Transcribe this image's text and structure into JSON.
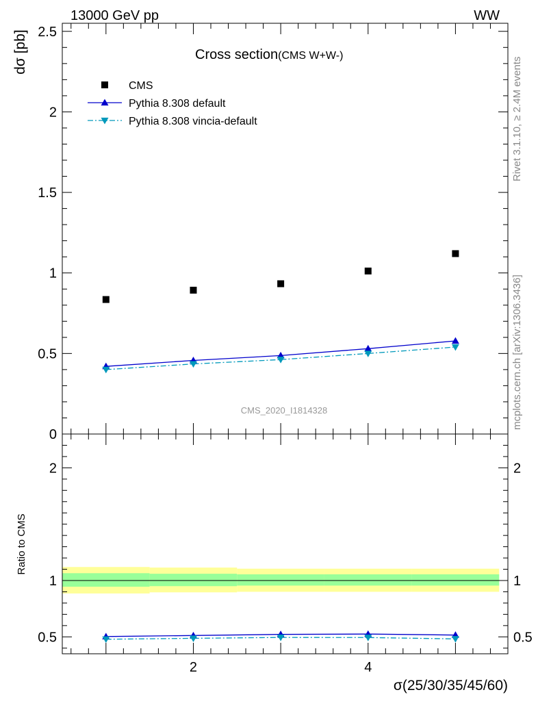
{
  "header": {
    "left": "13000 GeV pp",
    "right": "WW"
  },
  "side_text": {
    "rivet": "Rivet 3.1.10, ≥ 2.4M events",
    "mcplots": "mcplots.cern.ch [arXiv:1306.3436]"
  },
  "chart_data": [
    {
      "type": "scatter",
      "title": "Cross section",
      "subtitle": "(CMS W+W-)",
      "ylabel": "dσ [pb]",
      "xlabel": "",
      "watermark": "CMS_2020_I1814328",
      "xlim": [
        0.5,
        5.6
      ],
      "ylim": [
        0,
        2.55
      ],
      "yticks": [
        {
          "v": 0,
          "label": "0"
        },
        {
          "v": 0.5,
          "label": "0.5"
        },
        {
          "v": 1,
          "label": "1"
        },
        {
          "v": 1.5,
          "label": "1.5"
        },
        {
          "v": 2,
          "label": "2"
        },
        {
          "v": 2.5,
          "label": "2.5"
        }
      ],
      "legend_position": "top-left",
      "series": [
        {
          "name": "CMS",
          "style": "marker-square",
          "color": "#000000",
          "x": [
            1,
            2,
            3,
            4,
            5
          ],
          "y": [
            0.835,
            0.893,
            0.933,
            1.012,
            1.12
          ]
        },
        {
          "name": "Pythia 8.308 default",
          "style": "line-triangle-up",
          "color": "#0000cc",
          "x": [
            1,
            2,
            3,
            4,
            5
          ],
          "y": [
            0.42,
            0.457,
            0.487,
            0.53,
            0.578
          ]
        },
        {
          "name": "Pythia 8.308 vincia-default",
          "style": "dashdot-triangle-down",
          "color": "#0099bb",
          "x": [
            1,
            2,
            3,
            4,
            5
          ],
          "y": [
            0.4,
            0.435,
            0.462,
            0.5,
            0.54
          ]
        }
      ]
    },
    {
      "type": "line",
      "ylabel": "Ratio to CMS",
      "xlabel": "σ(25/30/35/45/60)",
      "xlim": [
        0.5,
        5.6
      ],
      "ylim": [
        0.35,
        2.3
      ],
      "xticks": [
        {
          "v": 2,
          "label": "2"
        },
        {
          "v": 4,
          "label": "4"
        }
      ],
      "yticks": [
        {
          "v": 0.5,
          "label": "0.5"
        },
        {
          "v": 1,
          "label": "1"
        },
        {
          "v": 2,
          "label": "2"
        }
      ],
      "reference_line": 1,
      "bands": {
        "outer_color": "#ffff99",
        "inner_color": "#99ff99",
        "bins": [
          {
            "x0": 0.5,
            "x1": 1.5,
            "outer": [
              0.885,
              1.12
            ],
            "inner": [
              0.945,
              1.065
            ]
          },
          {
            "x0": 1.5,
            "x1": 2.5,
            "outer": [
              0.895,
              1.115
            ],
            "inner": [
              0.95,
              1.06
            ]
          },
          {
            "x0": 2.5,
            "x1": 3.5,
            "outer": [
              0.9,
              1.105
            ],
            "inner": [
              0.955,
              1.055
            ]
          },
          {
            "x0": 3.5,
            "x1": 4.5,
            "outer": [
              0.9,
              1.105
            ],
            "inner": [
              0.955,
              1.055
            ]
          },
          {
            "x0": 4.5,
            "x1": 5.5,
            "outer": [
              0.9,
              1.105
            ],
            "inner": [
              0.955,
              1.055
            ]
          }
        ]
      },
      "series": [
        {
          "name": "Pythia 8.308 default",
          "style": "line-triangle-up",
          "color": "#0000cc",
          "x": [
            1,
            2,
            3,
            4,
            5
          ],
          "y": [
            0.503,
            0.512,
            0.522,
            0.525,
            0.516
          ]
        },
        {
          "name": "Pythia 8.308 vincia-default",
          "style": "dashdot-triangle-down",
          "color": "#0099bb",
          "x": [
            1,
            2,
            3,
            4,
            5
          ],
          "y": [
            0.479,
            0.487,
            0.495,
            0.494,
            0.482
          ]
        }
      ]
    }
  ]
}
